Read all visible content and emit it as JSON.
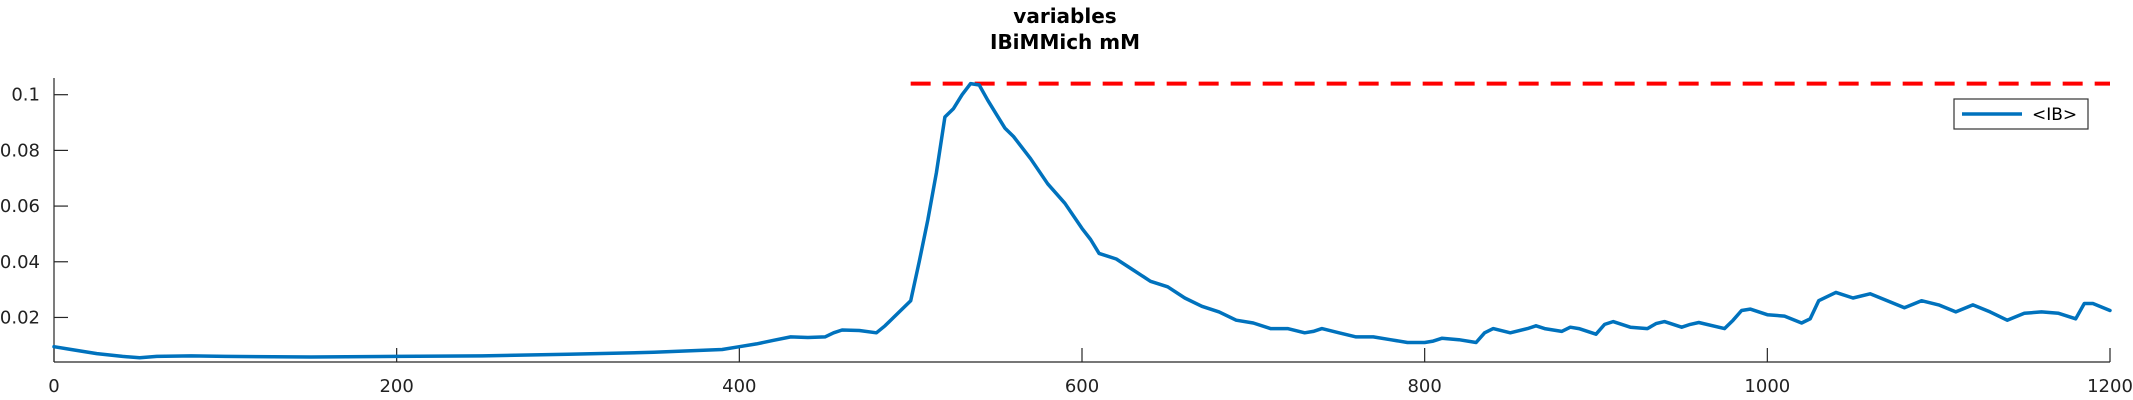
{
  "chart_data": {
    "type": "line",
    "title": "variables",
    "subtitle": "IBiMMich mM",
    "xlabel": "",
    "ylabel": "",
    "xlim": [
      0,
      1200
    ],
    "ylim": [
      0.004,
      0.106
    ],
    "xticks": [
      0,
      200,
      400,
      600,
      800,
      1000,
      1200
    ],
    "xtick_labels": [
      "0",
      "200",
      "400",
      "600",
      "800",
      "1000",
      "1200"
    ],
    "yticks": [
      0.02,
      0.04,
      0.06,
      0.08,
      0.1
    ],
    "ytick_labels": [
      "0.02",
      "0.04",
      "0.06",
      "0.08",
      "0.1"
    ],
    "grid": false,
    "legend_position": "top-right",
    "series": [
      {
        "name": "<IB>",
        "color": "#0072BD",
        "x": [
          0,
          10,
          25,
          40,
          50,
          60,
          80,
          100,
          150,
          200,
          250,
          300,
          350,
          390,
          400,
          410,
          420,
          430,
          440,
          450,
          455,
          460,
          470,
          480,
          485,
          490,
          500,
          505,
          510,
          515,
          520,
          525,
          530,
          535,
          540,
          545,
          550,
          555,
          560,
          570,
          580,
          590,
          600,
          605,
          610,
          620,
          630,
          640,
          650,
          660,
          670,
          680,
          690,
          700,
          710,
          720,
          730,
          735,
          740,
          750,
          760,
          770,
          780,
          790,
          800,
          805,
          810,
          820,
          830,
          835,
          840,
          850,
          860,
          865,
          870,
          880,
          885,
          890,
          900,
          905,
          910,
          920,
          930,
          935,
          940,
          950,
          955,
          960,
          975,
          980,
          985,
          990,
          1000,
          1010,
          1020,
          1025,
          1030,
          1040,
          1050,
          1060,
          1070,
          1080,
          1090,
          1100,
          1110,
          1120,
          1130,
          1140,
          1150,
          1160,
          1170,
          1180,
          1185,
          1190,
          1200
        ],
        "y": [
          0.0095,
          0.0085,
          0.007,
          0.006,
          0.0055,
          0.006,
          0.0062,
          0.006,
          0.0058,
          0.006,
          0.0062,
          0.0068,
          0.0075,
          0.0085,
          0.0095,
          0.0105,
          0.0118,
          0.013,
          0.0128,
          0.013,
          0.0145,
          0.0155,
          0.0153,
          0.0145,
          0.017,
          0.02,
          0.026,
          0.04,
          0.055,
          0.072,
          0.092,
          0.095,
          0.1,
          0.104,
          0.1035,
          0.098,
          0.093,
          0.088,
          0.085,
          0.077,
          0.068,
          0.061,
          0.052,
          0.048,
          0.043,
          0.041,
          0.037,
          0.033,
          0.031,
          0.027,
          0.024,
          0.022,
          0.019,
          0.018,
          0.016,
          0.016,
          0.0145,
          0.015,
          0.016,
          0.0145,
          0.013,
          0.013,
          0.012,
          0.011,
          0.011,
          0.0115,
          0.0125,
          0.012,
          0.011,
          0.0145,
          0.016,
          0.0145,
          0.016,
          0.017,
          0.016,
          0.015,
          0.0165,
          0.016,
          0.014,
          0.0175,
          0.0185,
          0.0165,
          0.016,
          0.0178,
          0.0185,
          0.0165,
          0.0175,
          0.0182,
          0.016,
          0.019,
          0.0225,
          0.023,
          0.021,
          0.0205,
          0.018,
          0.0195,
          0.026,
          0.029,
          0.027,
          0.0285,
          0.026,
          0.0235,
          0.026,
          0.0245,
          0.022,
          0.0245,
          0.022,
          0.019,
          0.0215,
          0.022,
          0.0215,
          0.0195,
          0.025,
          0.025,
          0.0225
        ]
      }
    ],
    "reference_line": {
      "y": 0.104,
      "x_start": 500,
      "x_end": 1200,
      "style": "dashed",
      "color": "#FF0000"
    }
  }
}
